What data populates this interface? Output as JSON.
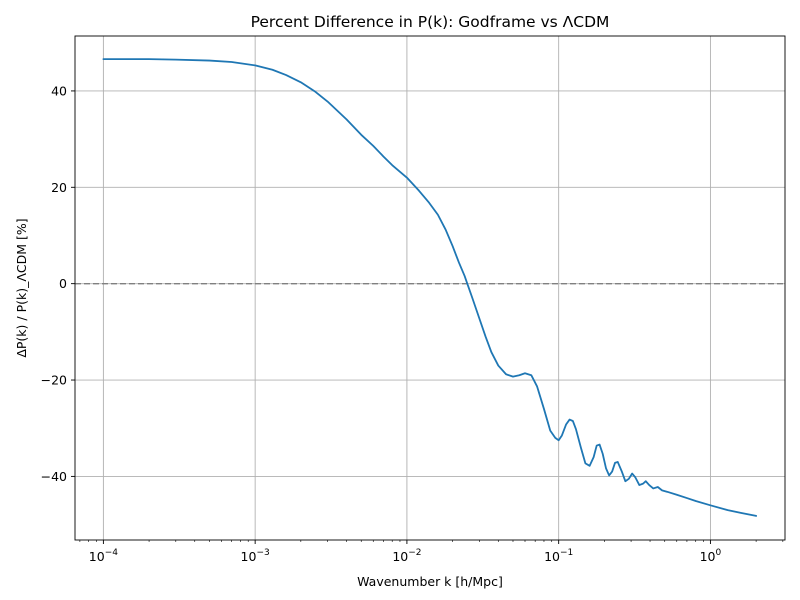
{
  "chart_data": {
    "type": "line",
    "title": "Percent Difference in P(k): Godframe vs ΛCDM",
    "xlabel": "Wavenumber k [h/Mpc]",
    "ylabel": "ΔP(k) / P(k)_ΛCDM [%]",
    "xscale": "log",
    "xlim": [
      6.5e-05,
      3.1
    ],
    "ylim": [
      -53.2,
      51.4
    ],
    "grid": true,
    "x_ticks": [
      {
        "value": 0.0001,
        "base": "10",
        "exp": "−4"
      },
      {
        "value": 0.001,
        "base": "10",
        "exp": "−3"
      },
      {
        "value": 0.01,
        "base": "10",
        "exp": "−2"
      },
      {
        "value": 0.1,
        "base": "10",
        "exp": "−1"
      },
      {
        "value": 1,
        "base": "10",
        "exp": "0"
      }
    ],
    "y_ticks": [
      {
        "value": 40,
        "label": "40"
      },
      {
        "value": 20,
        "label": "20"
      },
      {
        "value": 0,
        "label": "0"
      },
      {
        "value": -20,
        "label": "−20"
      },
      {
        "value": -40,
        "label": "−40"
      }
    ],
    "reference_line": {
      "y": 0,
      "style": "dashed",
      "color": "#808080"
    },
    "series": [
      {
        "color": "#1f77b4",
        "points": [
          [
            0.0001,
            46.6
          ],
          [
            0.0002,
            46.6
          ],
          [
            0.0003,
            46.5
          ],
          [
            0.0005,
            46.3
          ],
          [
            0.0007,
            46.0
          ],
          [
            0.001,
            45.3
          ],
          [
            0.0013,
            44.4
          ],
          [
            0.0016,
            43.3
          ],
          [
            0.002,
            41.8
          ],
          [
            0.0025,
            39.8
          ],
          [
            0.003,
            37.8
          ],
          [
            0.004,
            34.1
          ],
          [
            0.005,
            30.9
          ],
          [
            0.006,
            28.6
          ],
          [
            0.007,
            26.4
          ],
          [
            0.008,
            24.6
          ],
          [
            0.01,
            22.0
          ],
          [
            0.012,
            19.3
          ],
          [
            0.014,
            16.8
          ],
          [
            0.016,
            14.3
          ],
          [
            0.018,
            11.2
          ],
          [
            0.02,
            7.8
          ],
          [
            0.022,
            4.4
          ],
          [
            0.024,
            1.6
          ],
          [
            0.025,
            0.0
          ],
          [
            0.027,
            -3.0
          ],
          [
            0.03,
            -7.2
          ],
          [
            0.033,
            -11.0
          ],
          [
            0.036,
            -14.2
          ],
          [
            0.04,
            -17.0
          ],
          [
            0.045,
            -18.8
          ],
          [
            0.05,
            -19.3
          ],
          [
            0.055,
            -19.0
          ],
          [
            0.06,
            -18.6
          ],
          [
            0.066,
            -19.0
          ],
          [
            0.072,
            -21.3
          ],
          [
            0.08,
            -26.0
          ],
          [
            0.088,
            -30.5
          ],
          [
            0.095,
            -32.0
          ],
          [
            0.1,
            -32.5
          ],
          [
            0.105,
            -31.5
          ],
          [
            0.112,
            -29.2
          ],
          [
            0.118,
            -28.2
          ],
          [
            0.124,
            -28.5
          ],
          [
            0.13,
            -30.2
          ],
          [
            0.14,
            -34.0
          ],
          [
            0.15,
            -37.3
          ],
          [
            0.16,
            -37.8
          ],
          [
            0.17,
            -36.0
          ],
          [
            0.178,
            -33.6
          ],
          [
            0.186,
            -33.4
          ],
          [
            0.195,
            -35.3
          ],
          [
            0.205,
            -38.3
          ],
          [
            0.215,
            -39.8
          ],
          [
            0.225,
            -39.0
          ],
          [
            0.235,
            -37.2
          ],
          [
            0.245,
            -37.0
          ],
          [
            0.26,
            -38.9
          ],
          [
            0.275,
            -41.0
          ],
          [
            0.29,
            -40.5
          ],
          [
            0.305,
            -39.4
          ],
          [
            0.32,
            -40.2
          ],
          [
            0.34,
            -41.8
          ],
          [
            0.36,
            -41.5
          ],
          [
            0.375,
            -41.0
          ],
          [
            0.395,
            -41.8
          ],
          [
            0.42,
            -42.5
          ],
          [
            0.45,
            -42.2
          ],
          [
            0.48,
            -42.9
          ],
          [
            0.52,
            -43.2
          ],
          [
            0.6,
            -43.8
          ],
          [
            0.7,
            -44.5
          ],
          [
            0.8,
            -45.1
          ],
          [
            1.0,
            -46.0
          ],
          [
            1.3,
            -47.0
          ],
          [
            1.6,
            -47.6
          ],
          [
            2.0,
            -48.2
          ]
        ]
      }
    ]
  }
}
